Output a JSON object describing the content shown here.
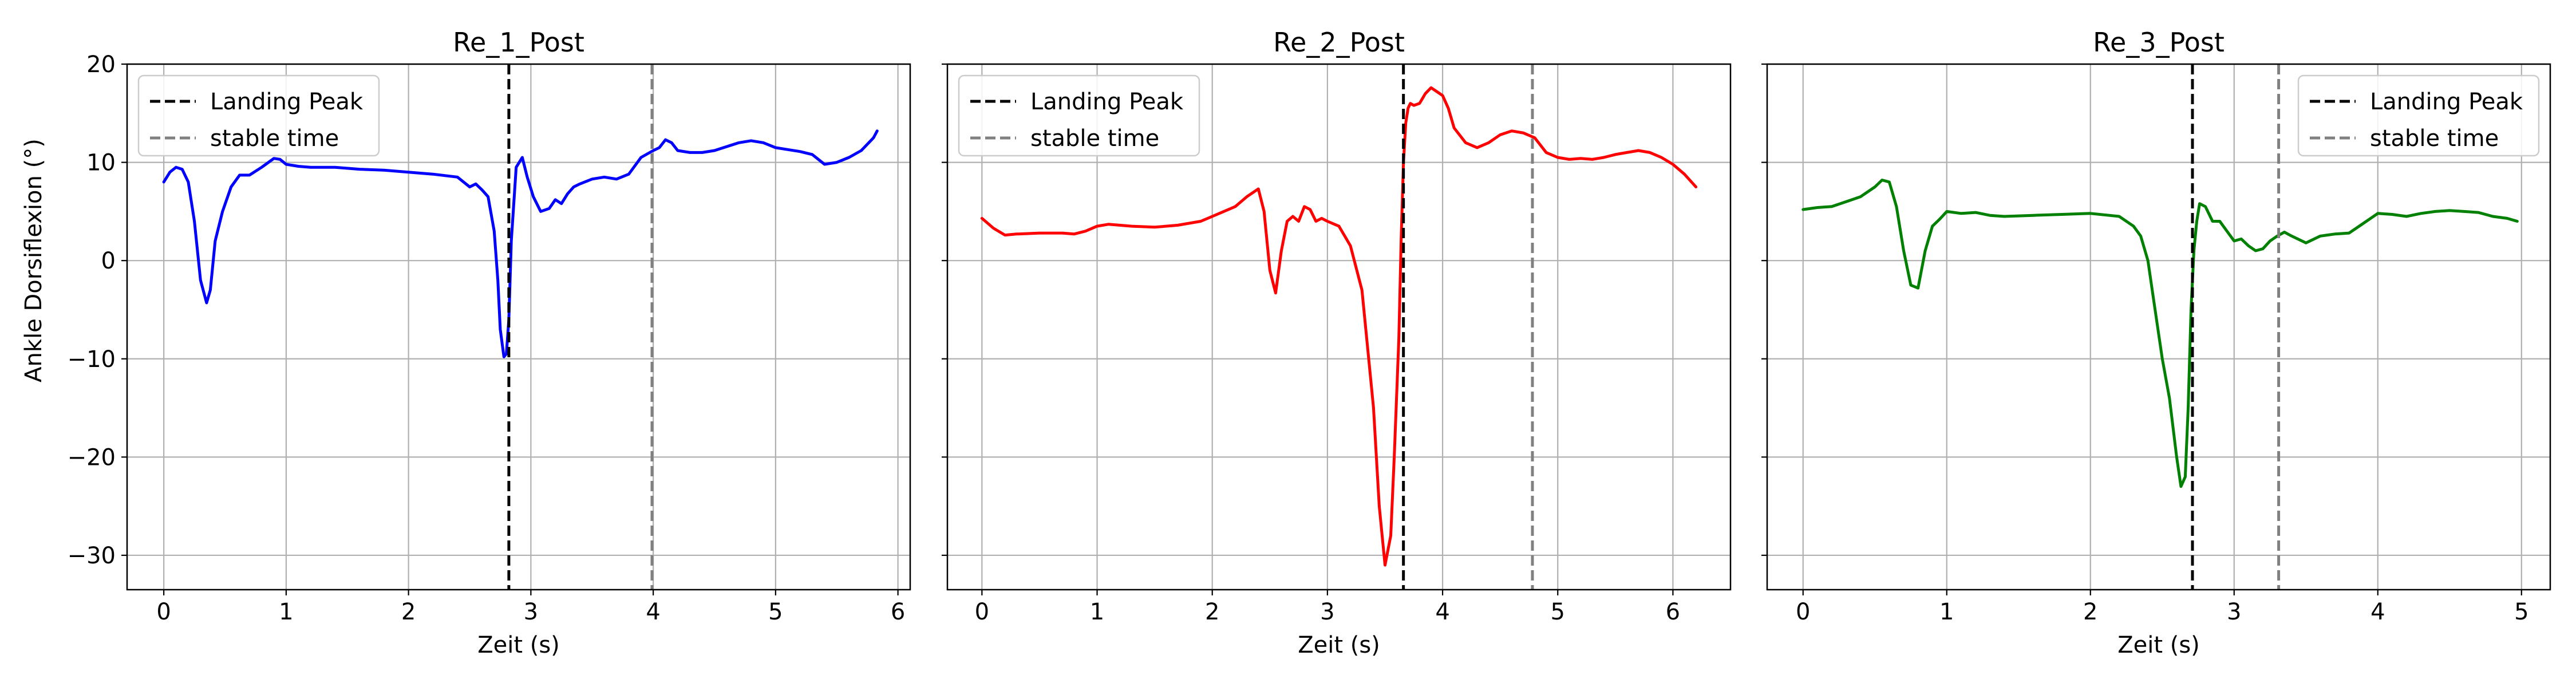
{
  "figure": {
    "ylabel": "Ankle Dorsiflexion (°)"
  },
  "chart_data": [
    {
      "type": "line",
      "title": "Re_1_Post",
      "xlabel": "Zeit (s)",
      "ylabel": "Ankle Dorsiflexion (°)",
      "xlim": [
        -0.3,
        6.1
      ],
      "ylim": [
        -33.5,
        20
      ],
      "xticks": [
        0,
        1,
        2,
        3,
        4,
        5,
        6
      ],
      "yticks": [
        -30,
        -20,
        -10,
        0,
        10,
        20
      ],
      "grid": true,
      "legend_position": "upper left",
      "series": [
        {
          "color": "#0000ff",
          "x": [
            0,
            0.05,
            0.1,
            0.15,
            0.2,
            0.25,
            0.3,
            0.35,
            0.38,
            0.42,
            0.48,
            0.55,
            0.62,
            0.7,
            0.8,
            0.9,
            0.95,
            1.0,
            1.1,
            1.2,
            1.4,
            1.6,
            1.8,
            2.0,
            2.2,
            2.4,
            2.5,
            2.55,
            2.6,
            2.65,
            2.7,
            2.73,
            2.75,
            2.78,
            2.8,
            2.82,
            2.84,
            2.88,
            2.93,
            2.97,
            3.02,
            3.08,
            3.15,
            3.2,
            3.25,
            3.3,
            3.35,
            3.4,
            3.5,
            3.6,
            3.7,
            3.8,
            3.9,
            4.0,
            4.05,
            4.1,
            4.15,
            4.2,
            4.3,
            4.4,
            4.5,
            4.6,
            4.7,
            4.8,
            4.9,
            5.0,
            5.1,
            5.2,
            5.3,
            5.4,
            5.5,
            5.6,
            5.7,
            5.8,
            5.83
          ],
          "y": [
            8,
            9,
            9.5,
            9.3,
            8,
            4,
            -2,
            -4.3,
            -3,
            2,
            5,
            7.5,
            8.7,
            8.7,
            9.5,
            10.4,
            10.3,
            9.8,
            9.6,
            9.5,
            9.5,
            9.3,
            9.2,
            9.0,
            8.8,
            8.5,
            7.5,
            7.8,
            7.2,
            6.5,
            3,
            -2,
            -7,
            -9.8,
            -9.5,
            -6,
            2,
            9.5,
            10.5,
            8.5,
            6.5,
            5,
            5.3,
            6.2,
            5.8,
            6.8,
            7.5,
            7.8,
            8.3,
            8.5,
            8.3,
            8.8,
            10.5,
            11.2,
            11.5,
            12.3,
            12.0,
            11.2,
            11.0,
            11.0,
            11.2,
            11.6,
            12.0,
            12.2,
            12.0,
            11.5,
            11.3,
            11.1,
            10.8,
            9.8,
            10.0,
            10.5,
            11.2,
            12.5,
            13.2
          ]
        }
      ],
      "vlines": [
        {
          "label": "Landing Peak",
          "x": 2.82,
          "color": "#000000"
        },
        {
          "label": "stable time",
          "x": 3.99,
          "color": "#808080"
        }
      ]
    },
    {
      "type": "line",
      "title": "Re_2_Post",
      "xlabel": "Zeit (s)",
      "ylabel": "",
      "xlim": [
        -0.3,
        6.5
      ],
      "ylim": [
        -33.5,
        20
      ],
      "xticks": [
        0,
        1,
        2,
        3,
        4,
        5,
        6
      ],
      "yticks": [
        -30,
        -20,
        -10,
        0,
        10,
        20
      ],
      "grid": true,
      "legend_position": "upper left",
      "series": [
        {
          "color": "#ff0000",
          "x": [
            0,
            0.1,
            0.2,
            0.3,
            0.5,
            0.7,
            0.8,
            0.9,
            1.0,
            1.1,
            1.3,
            1.5,
            1.7,
            1.9,
            2.0,
            2.1,
            2.2,
            2.3,
            2.4,
            2.45,
            2.5,
            2.55,
            2.6,
            2.65,
            2.7,
            2.75,
            2.8,
            2.85,
            2.9,
            2.95,
            3.0,
            3.1,
            3.2,
            3.3,
            3.4,
            3.45,
            3.5,
            3.55,
            3.58,
            3.62,
            3.64,
            3.66,
            3.68,
            3.7,
            3.72,
            3.75,
            3.8,
            3.85,
            3.9,
            3.95,
            4.0,
            4.05,
            4.1,
            4.2,
            4.3,
            4.4,
            4.5,
            4.6,
            4.7,
            4.8,
            4.9,
            5.0,
            5.1,
            5.2,
            5.3,
            5.4,
            5.5,
            5.6,
            5.7,
            5.8,
            5.9,
            6.0,
            6.1,
            6.2
          ],
          "y": [
            4.3,
            3.3,
            2.6,
            2.7,
            2.8,
            2.8,
            2.7,
            3.0,
            3.5,
            3.7,
            3.5,
            3.4,
            3.6,
            4.0,
            4.5,
            5.0,
            5.5,
            6.5,
            7.3,
            5.0,
            -1.0,
            -3.3,
            1.0,
            4.0,
            4.5,
            4.0,
            5.5,
            5.2,
            4.0,
            4.3,
            4.0,
            3.5,
            1.5,
            -3.0,
            -15.0,
            -25.0,
            -31.0,
            -28.0,
            -20.0,
            -8.0,
            2.0,
            10.0,
            14.0,
            15.5,
            16.0,
            15.8,
            16.0,
            17.0,
            17.6,
            17.2,
            16.8,
            15.5,
            13.5,
            12.0,
            11.5,
            12.0,
            12.8,
            13.2,
            13.0,
            12.5,
            11.0,
            10.5,
            10.3,
            10.4,
            10.3,
            10.5,
            10.8,
            11.0,
            11.2,
            11.0,
            10.5,
            9.8,
            8.8,
            7.5
          ]
        }
      ],
      "vlines": [
        {
          "label": "Landing Peak",
          "x": 3.66,
          "color": "#000000"
        },
        {
          "label": "stable time",
          "x": 4.78,
          "color": "#808080"
        }
      ]
    },
    {
      "type": "line",
      "title": "Re_3_Post",
      "xlabel": "Zeit (s)",
      "ylabel": "",
      "xlim": [
        -0.25,
        5.2
      ],
      "ylim": [
        -33.5,
        20
      ],
      "xticks": [
        0,
        1,
        2,
        3,
        4,
        5
      ],
      "yticks": [
        -30,
        -20,
        -10,
        0,
        10,
        20
      ],
      "grid": true,
      "legend_position": "upper right",
      "series": [
        {
          "color": "#008000",
          "x": [
            0,
            0.1,
            0.2,
            0.3,
            0.4,
            0.5,
            0.55,
            0.6,
            0.65,
            0.7,
            0.75,
            0.8,
            0.85,
            0.9,
            0.95,
            1.0,
            1.1,
            1.2,
            1.3,
            1.4,
            1.6,
            1.8,
            2.0,
            2.2,
            2.3,
            2.35,
            2.4,
            2.45,
            2.5,
            2.55,
            2.6,
            2.63,
            2.66,
            2.68,
            2.7,
            2.72,
            2.74,
            2.76,
            2.8,
            2.85,
            2.9,
            2.95,
            3.0,
            3.05,
            3.1,
            3.15,
            3.2,
            3.25,
            3.3,
            3.35,
            3.4,
            3.5,
            3.6,
            3.7,
            3.8,
            3.9,
            4.0,
            4.1,
            4.2,
            4.3,
            4.4,
            4.5,
            4.6,
            4.7,
            4.8,
            4.9,
            4.97
          ],
          "y": [
            5.2,
            5.4,
            5.5,
            6.0,
            6.5,
            7.5,
            8.2,
            8.0,
            5.5,
            1.0,
            -2.5,
            -2.8,
            1.0,
            3.5,
            4.2,
            5.0,
            4.8,
            4.9,
            4.6,
            4.5,
            4.6,
            4.7,
            4.8,
            4.5,
            3.5,
            2.5,
            0.0,
            -5.0,
            -10.0,
            -14.0,
            -20.0,
            -23.0,
            -22.0,
            -15.0,
            -5.0,
            1.0,
            4.0,
            5.8,
            5.5,
            4.0,
            4.0,
            3.0,
            2.0,
            2.2,
            1.5,
            1.0,
            1.2,
            2.0,
            2.5,
            2.9,
            2.5,
            1.8,
            2.5,
            2.7,
            2.8,
            3.8,
            4.8,
            4.7,
            4.5,
            4.8,
            5.0,
            5.1,
            5.0,
            4.9,
            4.5,
            4.3,
            4.0
          ]
        }
      ],
      "vlines": [
        {
          "label": "Landing Peak",
          "x": 2.71,
          "color": "#000000"
        },
        {
          "label": "stable time",
          "x": 3.31,
          "color": "#808080"
        }
      ]
    }
  ]
}
